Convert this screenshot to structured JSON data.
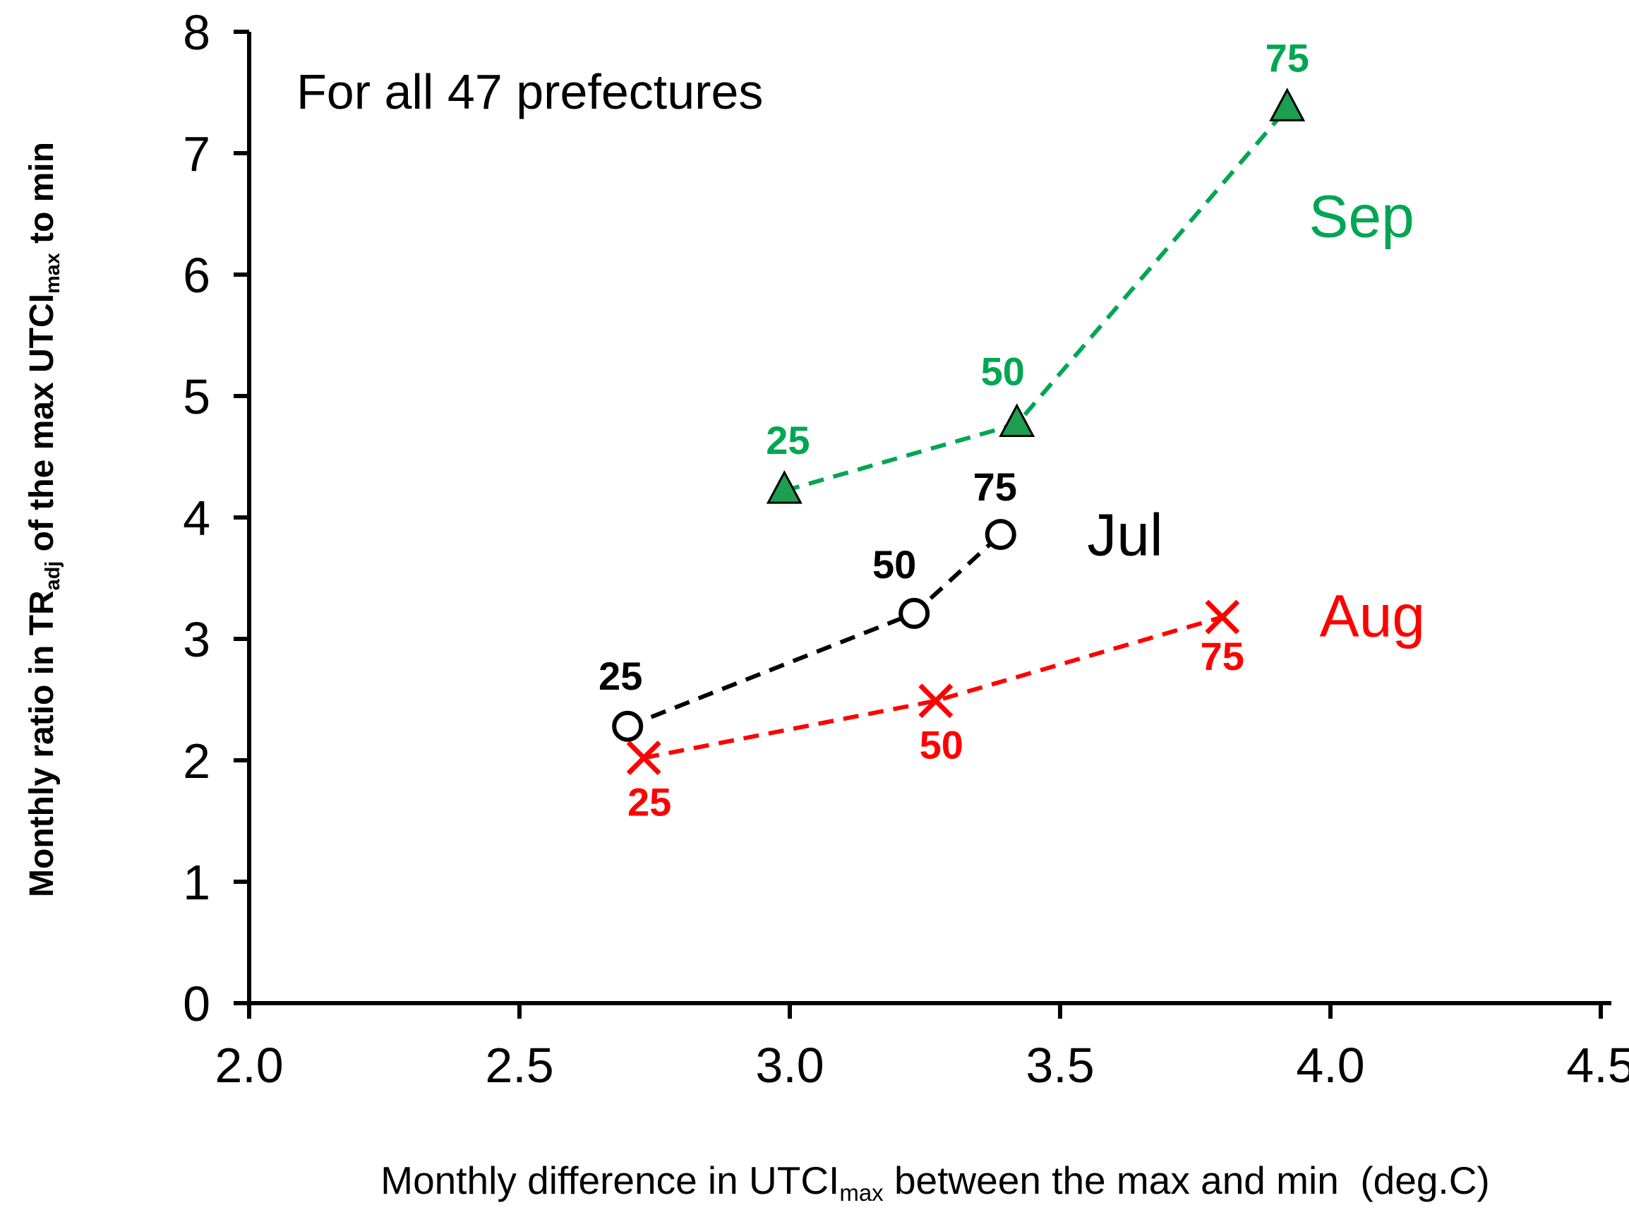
{
  "chart_data": {
    "type": "scatter",
    "title": "For all 47 prefectures",
    "xlabel_parts": [
      {
        "t": "Monthly difference in UTCI",
        "sub": false
      },
      {
        "t": "max",
        "sub": true
      },
      {
        "t": " between the max and min  (deg.C)",
        "sub": false
      }
    ],
    "ylabel_parts": [
      {
        "t": "Monthly ratio in TR",
        "sub": false
      },
      {
        "t": "adj",
        "sub": true
      },
      {
        "t": " of the max UTCI",
        "sub": false
      },
      {
        "t": "max",
        "sub": true
      },
      {
        "t": " to min",
        "sub": false
      }
    ],
    "xlim": [
      2.0,
      4.5
    ],
    "ylim": [
      0,
      8
    ],
    "xticks": [
      2.0,
      2.5,
      3.0,
      3.5,
      4.0,
      4.5
    ],
    "xtick_labels": [
      "2.0",
      "2.5",
      "3.0",
      "3.5",
      "4.0",
      "4.5"
    ],
    "yticks": [
      0,
      1,
      2,
      3,
      4,
      5,
      6,
      7,
      8
    ],
    "ytick_labels": [
      "0",
      "1",
      "2",
      "3",
      "4",
      "5",
      "6",
      "7",
      "8"
    ],
    "grid": false,
    "legend_position": "inline-labels",
    "series": [
      {
        "name": "Jul",
        "color": "#000000",
        "marker": "circle",
        "line_style": "dashed",
        "label_pos": {
          "x": 3.55,
          "y": 3.69
        },
        "points": [
          {
            "x": 2.7,
            "y": 2.28,
            "label": "25",
            "dx": -10,
            "dy": -52
          },
          {
            "x": 3.23,
            "y": 3.21,
            "label": "50",
            "dx": -28,
            "dy": -50
          },
          {
            "x": 3.39,
            "y": 3.86,
            "label": "75",
            "dx": -8,
            "dy": -48
          }
        ]
      },
      {
        "name": "Aug",
        "color": "#ff0000",
        "marker": "x",
        "line_style": "dashed",
        "label_pos": {
          "x": 3.98,
          "y": 3.02
        },
        "points": [
          {
            "x": 2.73,
            "y": 2.02,
            "label": "25",
            "dx": 8,
            "dy": 82
          },
          {
            "x": 3.27,
            "y": 2.49,
            "label": "50",
            "dx": 8,
            "dy": 82
          },
          {
            "x": 3.8,
            "y": 3.18,
            "label": "75",
            "dx": 0,
            "dy": 75
          }
        ]
      },
      {
        "name": "Sep",
        "color": "#00a651",
        "marker": "triangle",
        "marker_fill": "#1e9e50",
        "line_style": "dashed",
        "label_pos": {
          "x": 3.96,
          "y": 6.31
        },
        "points": [
          {
            "x": 2.99,
            "y": 4.22,
            "label": "25",
            "dx": 5,
            "dy": -52
          },
          {
            "x": 3.42,
            "y": 4.77,
            "label": "50",
            "dx": -20,
            "dy": -55
          },
          {
            "x": 3.92,
            "y": 7.37,
            "label": "75",
            "dx": 0,
            "dy": -52
          }
        ]
      }
    ]
  }
}
